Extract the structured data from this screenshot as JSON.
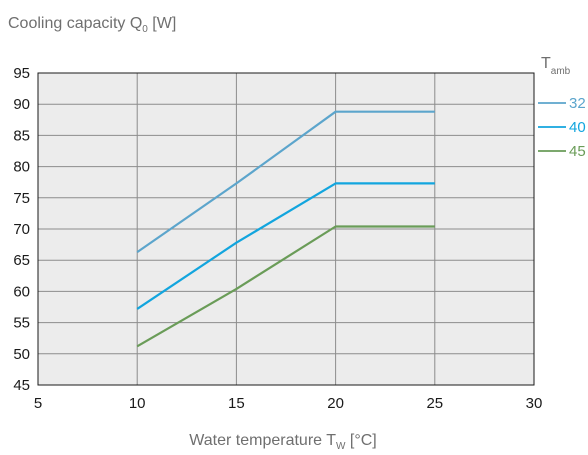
{
  "chart_data": {
    "type": "line",
    "ylabel": {
      "main": "Cooling capacity Q",
      "sub": "0",
      "unit": " [W]"
    },
    "xlabel": {
      "main": "Water temperature T",
      "sub": "W",
      "unit": " [°C]"
    },
    "legend": {
      "title_main": "T",
      "title_sub": "amb",
      "placement": "right"
    },
    "xlim": [
      5,
      30
    ],
    "ylim": [
      45,
      95
    ],
    "x_ticks": [
      5,
      10,
      15,
      20,
      25,
      30
    ],
    "y_ticks": [
      45,
      50,
      55,
      60,
      65,
      70,
      75,
      80,
      85,
      90,
      95
    ],
    "grid": true,
    "plot_background": "#ececec",
    "series": [
      {
        "name": "32",
        "color": "#5ca5cc",
        "x": [
          10,
          15,
          20,
          25
        ],
        "y": [
          66.3,
          77.3,
          88.8,
          88.8
        ]
      },
      {
        "name": "40",
        "color": "#12a5de",
        "x": [
          10,
          15,
          20,
          25
        ],
        "y": [
          57.2,
          67.8,
          77.3,
          77.3
        ]
      },
      {
        "name": "45",
        "color": "#6a9c58",
        "x": [
          10,
          15,
          20,
          25
        ],
        "y": [
          51.2,
          60.4,
          70.4,
          70.4
        ]
      }
    ]
  }
}
